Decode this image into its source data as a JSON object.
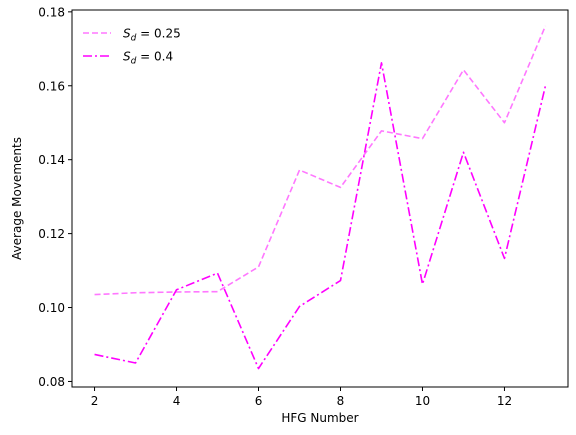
{
  "chart_data": {
    "type": "line",
    "xlabel": "HFG Number",
    "ylabel": "Average Movements",
    "xlim": [
      1.45,
      13.55
    ],
    "ylim": [
      0.0785,
      0.1805
    ],
    "xticks": [
      2,
      4,
      6,
      8,
      10,
      12
    ],
    "yticks": [
      0.08,
      0.1,
      0.12,
      0.14,
      0.16,
      0.18
    ],
    "ytick_labels": [
      "0.08",
      "0.10",
      "0.12",
      "0.14",
      "0.16",
      "0.18"
    ],
    "grid": false,
    "legend_position": "top-left",
    "x": [
      2,
      3,
      4,
      5,
      6,
      7,
      8,
      9,
      10,
      11,
      12,
      13
    ],
    "series": [
      {
        "name": "S_d = 0.25",
        "legend_main": "S",
        "legend_sub": "d",
        "legend_value": " = 0.25",
        "color": "#ff77ff",
        "style": "dashed",
        "values": [
          0.1035,
          0.104,
          0.1042,
          0.1043,
          0.111,
          0.1372,
          0.1325,
          0.1478,
          0.1457,
          0.1643,
          0.15,
          0.1762
        ]
      },
      {
        "name": "S_d = 0.4",
        "legend_main": "S",
        "legend_sub": "d",
        "legend_value": " = 0.4",
        "color": "#ff00ff",
        "style": "dashdot",
        "values": [
          0.0873,
          0.085,
          0.1048,
          0.1093,
          0.0835,
          0.1003,
          0.1073,
          0.1662,
          0.1063,
          0.142,
          0.1133,
          0.16
        ]
      }
    ]
  }
}
